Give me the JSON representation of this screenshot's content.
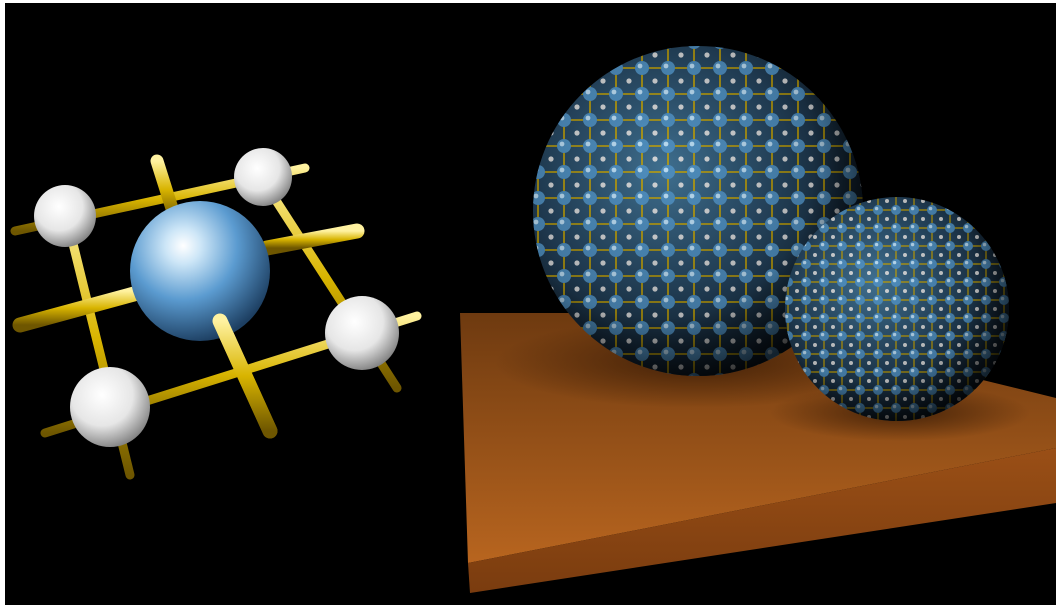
{
  "image": {
    "background_color": "#000000",
    "frame_color": "#ffffff",
    "colors": {
      "rod_gold": "#d8b400",
      "blue_atom": "#5b9bd0",
      "white_atom": "#f2f2f2",
      "board_brown": "#b5601c"
    }
  }
}
